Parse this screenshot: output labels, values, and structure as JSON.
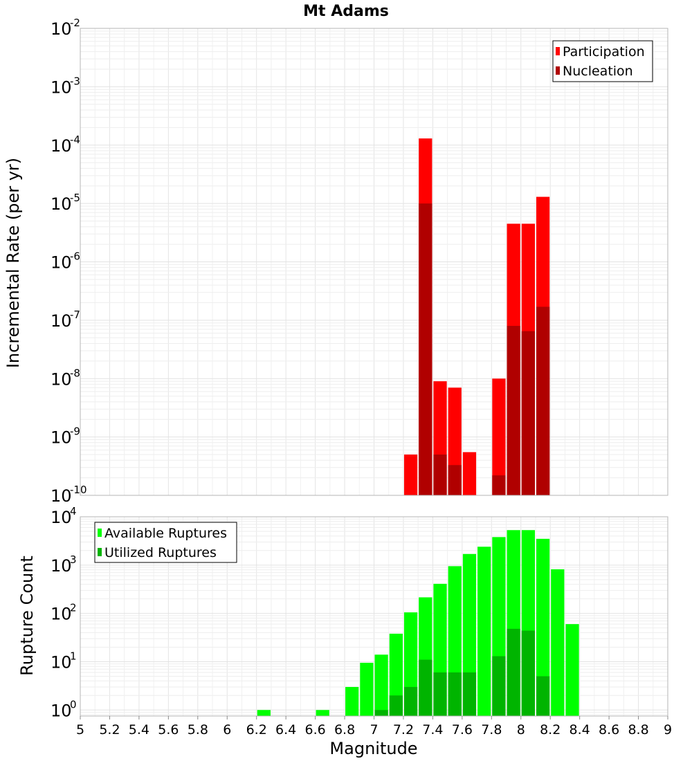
{
  "chart_data": [
    {
      "type": "bar",
      "title": "Mt Adams",
      "ylabel": "Incremental Rate (per yr)",
      "xlabel": "",
      "yscale": "log",
      "ylim": [
        1e-10,
        0.01
      ],
      "xlim": [
        5,
        9
      ],
      "y_tick_exponents": [
        "-2",
        "-3",
        "-4",
        "-5",
        "-6",
        "-7",
        "-8",
        "-9",
        "-10"
      ],
      "legend_position": "top-right",
      "grid": true,
      "series": [
        {
          "name": "Participation",
          "color": "#ff0000",
          "points": [
            {
              "x": 7.25,
              "y": 5e-10
            },
            {
              "x": 7.35,
              "y": 0.00013
            },
            {
              "x": 7.45,
              "y": 9e-09
            },
            {
              "x": 7.55,
              "y": 7e-09
            },
            {
              "x": 7.65,
              "y": 5.5e-10
            },
            {
              "x": 7.85,
              "y": 1e-08
            },
            {
              "x": 7.95,
              "y": 4.5e-06
            },
            {
              "x": 8.05,
              "y": 4.5e-06
            },
            {
              "x": 8.15,
              "y": 1.3e-05
            }
          ]
        },
        {
          "name": "Nucleation",
          "color": "#b00000",
          "points": [
            {
              "x": 7.35,
              "y": 1e-05
            },
            {
              "x": 7.45,
              "y": 5e-10
            },
            {
              "x": 7.55,
              "y": 3.3e-10
            },
            {
              "x": 7.85,
              "y": 2.2e-10
            },
            {
              "x": 7.95,
              "y": 8e-08
            },
            {
              "x": 8.05,
              "y": 6.5e-08
            },
            {
              "x": 8.15,
              "y": 1.7e-07
            }
          ]
        }
      ]
    },
    {
      "type": "bar",
      "title": "",
      "ylabel": "Rupture Count",
      "xlabel": "Magnitude",
      "yscale": "log",
      "ylim": [
        0.75,
        10000
      ],
      "xlim": [
        5,
        9
      ],
      "x_ticks": [
        "5",
        "5.2",
        "5.4",
        "5.6",
        "5.8",
        "6",
        "6.2",
        "6.4",
        "6.6",
        "6.8",
        "7",
        "7.2",
        "7.4",
        "7.6",
        "7.8",
        "8",
        "8.2",
        "8.4",
        "8.6",
        "8.8",
        "9"
      ],
      "y_tick_exponents": [
        "0",
        "1",
        "2",
        "3",
        "4"
      ],
      "legend_position": "top-left",
      "grid": true,
      "series": [
        {
          "name": "Available Ruptures",
          "color": "#00ff00",
          "points": [
            {
              "x": 6.25,
              "y": 1
            },
            {
              "x": 6.65,
              "y": 1
            },
            {
              "x": 6.85,
              "y": 3
            },
            {
              "x": 6.95,
              "y": 9.5
            },
            {
              "x": 7.05,
              "y": 14
            },
            {
              "x": 7.15,
              "y": 38
            },
            {
              "x": 7.25,
              "y": 105
            },
            {
              "x": 7.35,
              "y": 215
            },
            {
              "x": 7.45,
              "y": 410
            },
            {
              "x": 7.55,
              "y": 950
            },
            {
              "x": 7.65,
              "y": 1700
            },
            {
              "x": 7.75,
              "y": 2400
            },
            {
              "x": 7.85,
              "y": 3800
            },
            {
              "x": 7.95,
              "y": 5300
            },
            {
              "x": 8.05,
              "y": 5300
            },
            {
              "x": 8.15,
              "y": 3500
            },
            {
              "x": 8.25,
              "y": 820
            },
            {
              "x": 8.35,
              "y": 60
            }
          ]
        },
        {
          "name": "Utilized Ruptures",
          "color": "#00b400",
          "points": [
            {
              "x": 7.05,
              "y": 1
            },
            {
              "x": 7.15,
              "y": 2
            },
            {
              "x": 7.25,
              "y": 3
            },
            {
              "x": 7.35,
              "y": 11
            },
            {
              "x": 7.45,
              "y": 6
            },
            {
              "x": 7.55,
              "y": 6
            },
            {
              "x": 7.65,
              "y": 6
            },
            {
              "x": 7.85,
              "y": 13
            },
            {
              "x": 7.95,
              "y": 48
            },
            {
              "x": 8.05,
              "y": 44
            },
            {
              "x": 8.15,
              "y": 5
            }
          ]
        }
      ]
    }
  ]
}
